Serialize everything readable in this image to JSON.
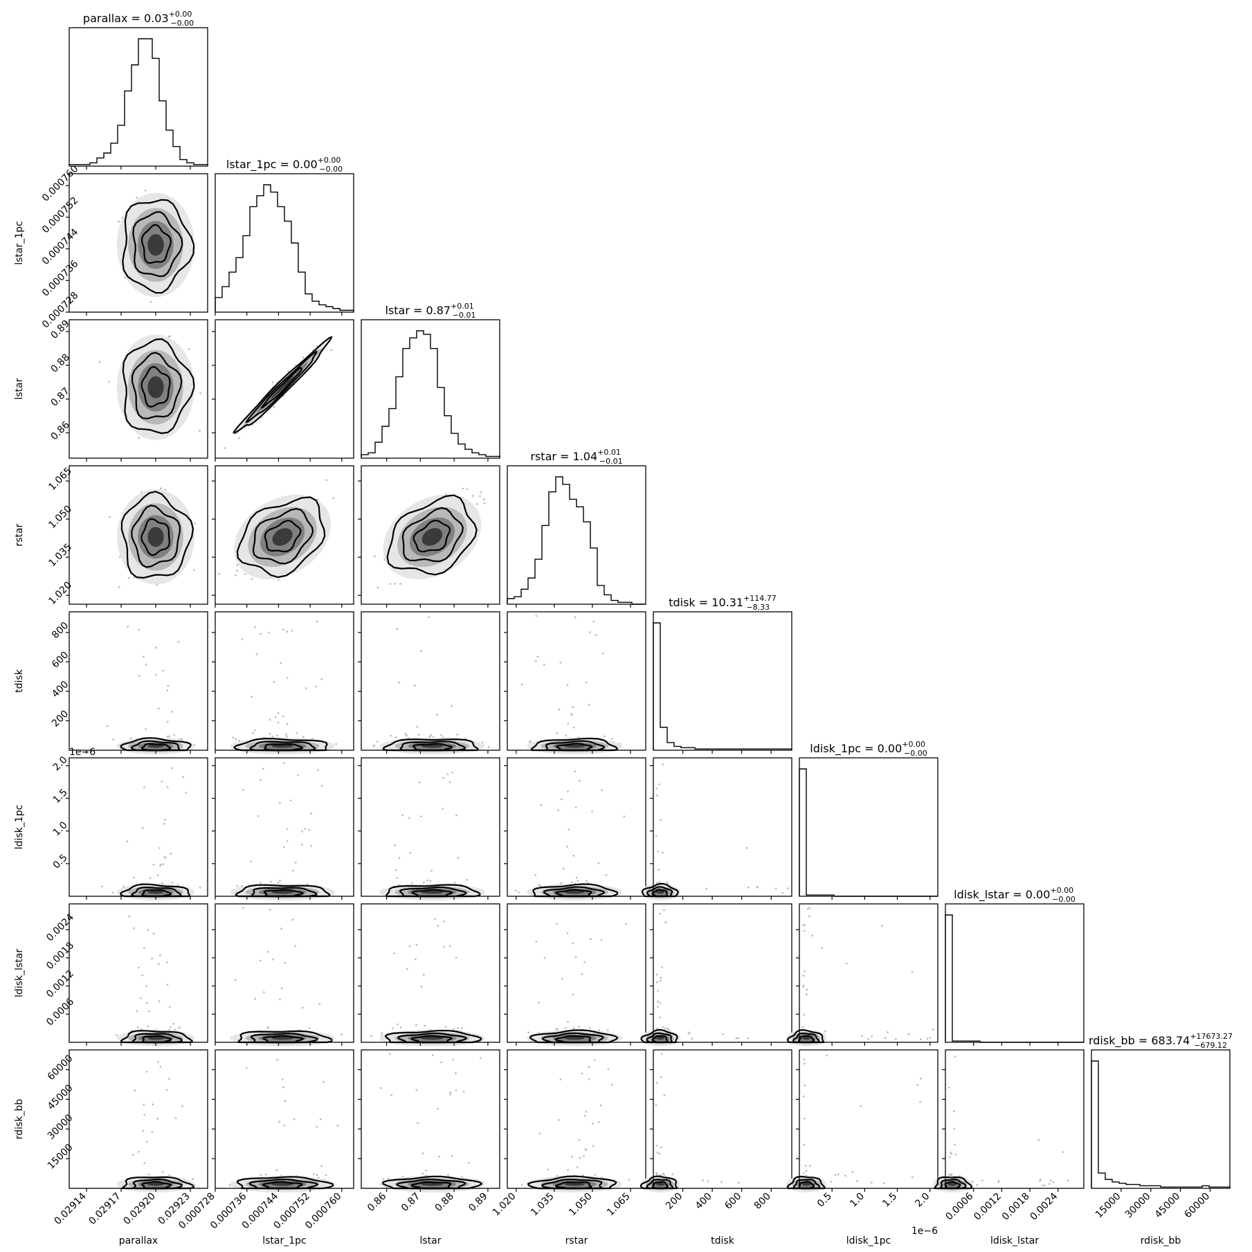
{
  "chart_data": {
    "type": "corner",
    "parameters": [
      {
        "name": "parallax",
        "center": 0.0292,
        "sigma": 1.4e-05,
        "xlim": [
          0.029125,
          0.029245
        ],
        "ticks": [
          0.02914,
          0.02917,
          0.0292,
          0.02923
        ],
        "tick_labels": [
          "0.02914",
          "0.02917",
          "0.02920",
          "0.02923"
        ],
        "title_text": "parallax = 0.03",
        "title_sup": "+0.00",
        "title_sub": "−0.00",
        "axis_label": "parallax",
        "offset_label": ""
      },
      {
        "name": "lstar_1pc",
        "center": 0.000745,
        "sigma": 5.5e-06,
        "xlim": [
          0.000728,
          0.000763
        ],
        "ticks": [
          0.000728,
          0.000736,
          0.000744,
          0.000752,
          0.00076
        ],
        "tick_labels": [
          "0.000728",
          "0.000736",
          "0.000744",
          "0.000752",
          "0.000760"
        ],
        "title_text": "lstar_1pc = 0.00",
        "title_sup": "+0.00",
        "title_sub": "−0.00",
        "axis_label": "lstar_1pc",
        "offset_label": ""
      },
      {
        "name": "lstar",
        "center": 0.8735,
        "sigma": 0.0065,
        "xlim": [
          0.8525,
          0.8935
        ],
        "ticks": [
          0.86,
          0.87,
          0.88,
          0.89
        ],
        "tick_labels": [
          "0.86",
          "0.87",
          "0.88",
          "0.89"
        ],
        "title_text": "lstar = 0.87",
        "title_sup": "+0.01",
        "title_sub": "−0.01",
        "axis_label": "lstar",
        "offset_label": ""
      },
      {
        "name": "rstar",
        "center": 1.043,
        "sigma": 0.0078,
        "xlim": [
          1.0165,
          1.071
        ],
        "ticks": [
          1.02,
          1.035,
          1.05,
          1.065
        ],
        "tick_labels": [
          "1.020",
          "1.035",
          "1.050",
          "1.065"
        ],
        "title_text": "rstar = 1.04",
        "title_sup": "+0.01",
        "title_sub": "−0.01",
        "axis_label": "rstar",
        "offset_label": ""
      },
      {
        "name": "tdisk",
        "center": 10.31,
        "sigma": 60,
        "xlim": [
          0,
          940
        ],
        "ticks": [
          200,
          400,
          600,
          800
        ],
        "tick_labels": [
          "200",
          "400",
          "600",
          "800"
        ],
        "title_text": "tdisk = 10.31",
        "title_sup": "+114.77",
        "title_sub": "−8.33",
        "axis_label": "tdisk",
        "offset_label": ""
      },
      {
        "name": "ldisk_1pc",
        "center": 0.0,
        "sigma": 0.03,
        "xlim": [
          0,
          2.12
        ],
        "ticks": [
          0.5,
          1.0,
          1.5,
          2.0
        ],
        "tick_labels": [
          "0.5",
          "1.0",
          "1.5",
          "2.0"
        ],
        "title_text": "ldisk_1pc = 0.00",
        "title_sup": "+0.00",
        "title_sub": "−0.00",
        "axis_label": "ldisk_1pc",
        "offset_label": "1e−6"
      },
      {
        "name": "ldisk_lstar",
        "center": 0.0,
        "sigma": 4e-05,
        "xlim": [
          0,
          0.00295
        ],
        "ticks": [
          0.0006,
          0.0012,
          0.0018,
          0.0024
        ],
        "tick_labels": [
          "0.0006",
          "0.0012",
          "0.0018",
          "0.0024"
        ],
        "title_text": "ldisk_lstar = 0.00",
        "title_sup": "+0.00",
        "title_sub": "−0.00",
        "axis_label": "ldisk_lstar",
        "offset_label": ""
      },
      {
        "name": "rdisk_bb",
        "center": 683.74,
        "sigma": 5000,
        "xlim": [
          0,
          70000
        ],
        "ticks": [
          15000,
          30000,
          45000,
          60000
        ],
        "tick_labels": [
          "15000",
          "30000",
          "45000",
          "60000"
        ],
        "title_text": "rdisk_bb = 683.74",
        "title_sup": "+17673.27",
        "title_sub": "−679.12",
        "axis_label": "rdisk_bb",
        "offset_label": ""
      }
    ],
    "histograms": [
      [
        1,
        1,
        1,
        2,
        5,
        8,
        14,
        25,
        46,
        62,
        78,
        78,
        66,
        40,
        22,
        12,
        4,
        2,
        1,
        1
      ],
      [
        8,
        14,
        22,
        30,
        42,
        58,
        64,
        70,
        66,
        58,
        50,
        38,
        22,
        10,
        6,
        4,
        3,
        2,
        1,
        1
      ],
      [
        2,
        3,
        9,
        18,
        28,
        46,
        62,
        68,
        72,
        70,
        62,
        40,
        24,
        14,
        8,
        5,
        3,
        2,
        1,
        1
      ],
      [
        3,
        4,
        8,
        14,
        24,
        42,
        60,
        68,
        64,
        56,
        52,
        44,
        30,
        10,
        5,
        2,
        1,
        1,
        0,
        0
      ],
      [
        100,
        18,
        6,
        3,
        2,
        2,
        1,
        1,
        1,
        1,
        1,
        1,
        1,
        1,
        1,
        1,
        1,
        1,
        1,
        1
      ],
      [
        100,
        1,
        1,
        1,
        1,
        0,
        0,
        0,
        0,
        0,
        0,
        0,
        0,
        0,
        0,
        0,
        0,
        0,
        0,
        0
      ],
      [
        100,
        1,
        1,
        1,
        1,
        0,
        0,
        0,
        0,
        0,
        0,
        0,
        0,
        0,
        0,
        0,
        0,
        0,
        0,
        0
      ],
      [
        100,
        12,
        7,
        5,
        4,
        3,
        3,
        2,
        2,
        2,
        1,
        1,
        1,
        1,
        1,
        1,
        2,
        1,
        1,
        1
      ]
    ],
    "correlations": {
      "1-2": 0.98,
      "1-3": 0.7,
      "2-3": 0.68
    },
    "grid": false
  }
}
